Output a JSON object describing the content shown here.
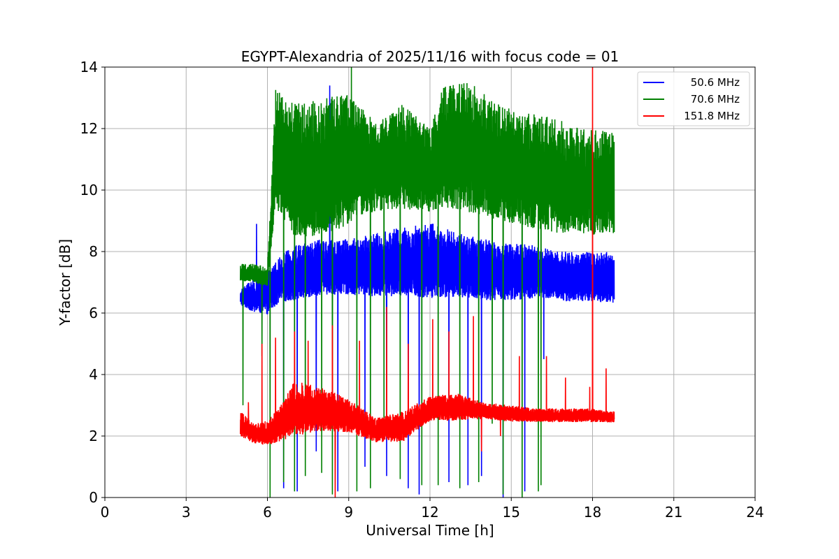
{
  "chart_data": {
    "type": "line",
    "title": "EGYPT-Alexandria of 2025/11/16 with focus code = 01",
    "xlabel": "Universal Time [h]",
    "ylabel": "Y-factor [dB]",
    "xlim": [
      0,
      24
    ],
    "ylim": [
      0,
      14
    ],
    "xticks": [
      0,
      3,
      6,
      9,
      12,
      15,
      18,
      21,
      24
    ],
    "yticks": [
      0,
      2,
      4,
      6,
      8,
      10,
      12,
      14
    ],
    "grid": true,
    "legend_position": "top-right",
    "series": [
      {
        "name": "50.6 MHz",
        "color": "#0000ff",
        "envelope": [
          {
            "x": 5.0,
            "low": 6.2,
            "high": 6.8
          },
          {
            "x": 5.5,
            "low": 5.9,
            "high": 7.1
          },
          {
            "x": 6.0,
            "low": 5.8,
            "high": 7.4
          },
          {
            "x": 6.5,
            "low": 6.2,
            "high": 7.9
          },
          {
            "x": 7.0,
            "low": 6.2,
            "high": 8.2
          },
          {
            "x": 8.0,
            "low": 6.4,
            "high": 8.4
          },
          {
            "x": 9.0,
            "low": 6.4,
            "high": 8.4
          },
          {
            "x": 10.0,
            "low": 6.3,
            "high": 8.6
          },
          {
            "x": 11.0,
            "low": 6.3,
            "high": 8.8
          },
          {
            "x": 12.0,
            "low": 6.2,
            "high": 9.0
          },
          {
            "x": 13.0,
            "low": 6.3,
            "high": 8.6
          },
          {
            "x": 14.0,
            "low": 6.2,
            "high": 8.4
          },
          {
            "x": 15.0,
            "low": 6.2,
            "high": 8.3
          },
          {
            "x": 16.0,
            "low": 6.3,
            "high": 8.2
          },
          {
            "x": 17.0,
            "low": 6.2,
            "high": 8.0
          },
          {
            "x": 18.0,
            "low": 6.2,
            "high": 8.0
          },
          {
            "x": 18.8,
            "low": 6.1,
            "high": 8.0
          }
        ],
        "spikes": [
          {
            "x": 5.6,
            "y": 8.9
          },
          {
            "x": 6.6,
            "y": 0.3
          },
          {
            "x": 7.1,
            "y": 0.2
          },
          {
            "x": 7.8,
            "y": 1.5
          },
          {
            "x": 8.3,
            "y": 13.4
          },
          {
            "x": 8.6,
            "y": 0.2
          },
          {
            "x": 9.6,
            "y": 1.0
          },
          {
            "x": 10.4,
            "y": 0.7
          },
          {
            "x": 11.2,
            "y": 0.3
          },
          {
            "x": 11.6,
            "y": 0.1
          },
          {
            "x": 12.7,
            "y": 0.5
          },
          {
            "x": 13.4,
            "y": 0.4
          },
          {
            "x": 13.9,
            "y": 0.7
          },
          {
            "x": 14.7,
            "y": 0.0
          },
          {
            "x": 15.5,
            "y": 0.2
          },
          {
            "x": 16.2,
            "y": 4.5
          }
        ]
      },
      {
        "name": "70.6 MHz",
        "color": "#008000",
        "envelope": [
          {
            "x": 5.0,
            "low": 7.0,
            "high": 7.6
          },
          {
            "x": 5.5,
            "low": 6.9,
            "high": 7.6
          },
          {
            "x": 6.0,
            "low": 6.8,
            "high": 7.5
          },
          {
            "x": 6.3,
            "low": 9.0,
            "high": 13.4
          },
          {
            "x": 7.0,
            "low": 8.0,
            "high": 12.8
          },
          {
            "x": 8.0,
            "low": 8.0,
            "high": 13.0
          },
          {
            "x": 9.0,
            "low": 8.4,
            "high": 13.1
          },
          {
            "x": 10.0,
            "low": 9.0,
            "high": 12.2
          },
          {
            "x": 11.0,
            "low": 9.0,
            "high": 12.8
          },
          {
            "x": 12.0,
            "low": 9.0,
            "high": 12.0
          },
          {
            "x": 12.5,
            "low": 9.0,
            "high": 13.4
          },
          {
            "x": 13.5,
            "low": 8.8,
            "high": 13.5
          },
          {
            "x": 14.5,
            "low": 8.6,
            "high": 12.8
          },
          {
            "x": 15.5,
            "low": 8.4,
            "high": 12.5
          },
          {
            "x": 16.5,
            "low": 8.2,
            "high": 12.4
          },
          {
            "x": 17.5,
            "low": 8.2,
            "high": 12.0
          },
          {
            "x": 18.8,
            "low": 8.1,
            "high": 11.9
          }
        ],
        "spikes": [
          {
            "x": 5.1,
            "y": 3.0
          },
          {
            "x": 5.8,
            "y": 4.6
          },
          {
            "x": 6.1,
            "y": 0.0
          },
          {
            "x": 6.6,
            "y": 0.5
          },
          {
            "x": 7.0,
            "y": 0.2
          },
          {
            "x": 7.4,
            "y": 0.7
          },
          {
            "x": 8.0,
            "y": 0.8
          },
          {
            "x": 8.4,
            "y": 0.1
          },
          {
            "x": 9.1,
            "y": 14.0
          },
          {
            "x": 9.3,
            "y": 0.2
          },
          {
            "x": 9.8,
            "y": 0.3
          },
          {
            "x": 10.3,
            "y": 2.0
          },
          {
            "x": 10.9,
            "y": 0.6
          },
          {
            "x": 11.7,
            "y": 0.4
          },
          {
            "x": 12.3,
            "y": 0.4
          },
          {
            "x": 13.1,
            "y": 0.3
          },
          {
            "x": 13.8,
            "y": 0.5
          },
          {
            "x": 14.3,
            "y": 2.4
          },
          {
            "x": 14.7,
            "y": 0.1
          },
          {
            "x": 15.4,
            "y": 0.0
          },
          {
            "x": 16.0,
            "y": 0.2
          },
          {
            "x": 16.1,
            "y": 0.4
          }
        ]
      },
      {
        "name": "151.8 MHz",
        "color": "#ff0000",
        "envelope": [
          {
            "x": 5.0,
            "low": 1.9,
            "high": 2.8
          },
          {
            "x": 5.5,
            "low": 1.7,
            "high": 2.4
          },
          {
            "x": 6.0,
            "low": 1.6,
            "high": 2.5
          },
          {
            "x": 6.5,
            "low": 1.7,
            "high": 3.0
          },
          {
            "x": 7.0,
            "low": 1.8,
            "high": 3.8
          },
          {
            "x": 8.0,
            "low": 2.0,
            "high": 3.6
          },
          {
            "x": 9.0,
            "low": 2.0,
            "high": 3.2
          },
          {
            "x": 10.0,
            "low": 1.7,
            "high": 2.6
          },
          {
            "x": 11.0,
            "low": 1.7,
            "high": 2.8
          },
          {
            "x": 12.0,
            "low": 2.4,
            "high": 3.3
          },
          {
            "x": 13.0,
            "low": 2.4,
            "high": 3.4
          },
          {
            "x": 14.0,
            "low": 2.5,
            "high": 3.1
          },
          {
            "x": 15.0,
            "low": 2.4,
            "high": 3.0
          },
          {
            "x": 16.0,
            "low": 2.4,
            "high": 2.9
          },
          {
            "x": 17.0,
            "low": 2.4,
            "high": 2.9
          },
          {
            "x": 18.0,
            "low": 2.4,
            "high": 2.9
          },
          {
            "x": 18.8,
            "low": 2.4,
            "high": 2.8
          }
        ],
        "spikes": [
          {
            "x": 5.3,
            "y": 3.1
          },
          {
            "x": 5.8,
            "y": 5.0
          },
          {
            "x": 6.3,
            "y": 5.2
          },
          {
            "x": 7.0,
            "y": 5.4
          },
          {
            "x": 7.5,
            "y": 5.1
          },
          {
            "x": 8.4,
            "y": 5.6
          },
          {
            "x": 8.5,
            "y": 0.0
          },
          {
            "x": 9.4,
            "y": 5.1
          },
          {
            "x": 10.4,
            "y": 6.2
          },
          {
            "x": 11.2,
            "y": 5.0
          },
          {
            "x": 12.1,
            "y": 5.8
          },
          {
            "x": 12.7,
            "y": 5.4
          },
          {
            "x": 13.6,
            "y": 5.9
          },
          {
            "x": 13.9,
            "y": 1.5
          },
          {
            "x": 14.6,
            "y": 2.0
          },
          {
            "x": 15.3,
            "y": 4.6
          },
          {
            "x": 16.3,
            "y": 4.6
          },
          {
            "x": 17.0,
            "y": 3.9
          },
          {
            "x": 17.9,
            "y": 3.6
          },
          {
            "x": 18.0,
            "y": 14.0
          },
          {
            "x": 18.5,
            "y": 4.2
          }
        ]
      }
    ]
  }
}
